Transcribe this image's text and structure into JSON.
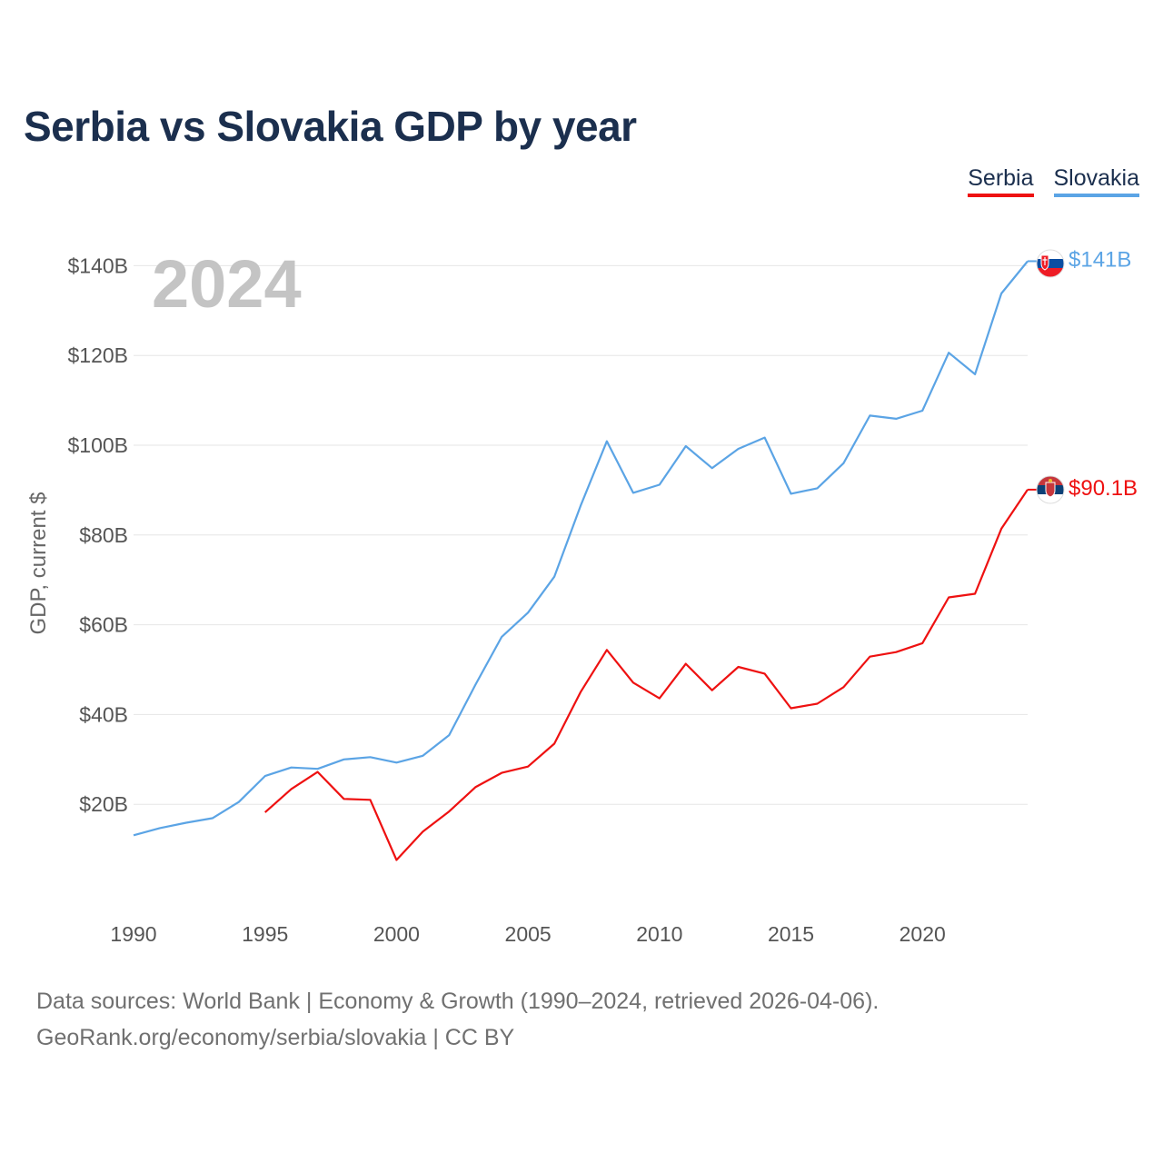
{
  "title": "Serbia vs Slovakia GDP by year",
  "legend": {
    "serbia": "Serbia",
    "slovakia": "Slovakia"
  },
  "source": {
    "line1": "Data sources: World Bank | Economy & Growth (1990–2024, retrieved 2026-04-06).",
    "line2": "GeoRank.org/economy/serbia/slovakia | CC BY"
  },
  "chart_data": {
    "type": "line",
    "title": "Serbia vs Slovakia GDP by year",
    "year_label": "2024",
    "xlabel": "",
    "ylabel": "GDP, current $",
    "xlim": [
      1990,
      2024
    ],
    "ylim": [
      0,
      150
    ],
    "grid": true,
    "x_ticks": [
      {
        "value": 1990,
        "label": "1990"
      },
      {
        "value": 1995,
        "label": "1995"
      },
      {
        "value": 2000,
        "label": "2000"
      },
      {
        "value": 2005,
        "label": "2005"
      },
      {
        "value": 2010,
        "label": "2010"
      },
      {
        "value": 2015,
        "label": "2015"
      },
      {
        "value": 2020,
        "label": "2020"
      }
    ],
    "y_ticks": [
      {
        "value": 20,
        "label": "$20B"
      },
      {
        "value": 40,
        "label": "$40B"
      },
      {
        "value": 60,
        "label": "$60B"
      },
      {
        "value": 80,
        "label": "$80B"
      },
      {
        "value": 100,
        "label": "$100B"
      },
      {
        "value": 120,
        "label": "$120B"
      },
      {
        "value": 140,
        "label": "$140B"
      }
    ],
    "series": [
      {
        "name": "Slovakia",
        "color": "#5ba4e5",
        "end_label": "$141B",
        "flag_icon": "slovakia-flag-icon",
        "x": [
          1990,
          1991,
          1992,
          1993,
          1994,
          1995,
          1996,
          1997,
          1998,
          1999,
          2000,
          2001,
          2002,
          2003,
          2004,
          2005,
          2006,
          2007,
          2008,
          2009,
          2010,
          2011,
          2012,
          2013,
          2014,
          2015,
          2016,
          2017,
          2018,
          2019,
          2020,
          2021,
          2022,
          2023,
          2024
        ],
        "values": [
          13.1,
          14.7,
          15.9,
          16.9,
          20.5,
          26.3,
          28.2,
          27.9,
          30.0,
          30.5,
          29.3,
          30.8,
          35.4,
          46.6,
          57.3,
          62.7,
          70.7,
          86.5,
          100.9,
          89.4,
          91.2,
          99.8,
          94.9,
          99.2,
          101.7,
          89.2,
          90.4,
          96.0,
          106.6,
          105.9,
          107.7,
          120.6,
          115.8,
          133.8,
          141.0
        ]
      },
      {
        "name": "Serbia",
        "color": "#ee1111",
        "end_label": "$90.1B",
        "flag_icon": "serbia-flag-icon",
        "x": [
          1995,
          1996,
          1997,
          1998,
          1999,
          2000,
          2001,
          2002,
          2003,
          2004,
          2005,
          2006,
          2007,
          2008,
          2009,
          2010,
          2011,
          2012,
          2013,
          2014,
          2015,
          2016,
          2017,
          2018,
          2019,
          2020,
          2021,
          2022,
          2023,
          2024
        ],
        "values": [
          18.2,
          23.4,
          27.2,
          21.2,
          21.0,
          7.6,
          13.9,
          18.4,
          23.8,
          27.0,
          28.4,
          33.5,
          45.0,
          54.4,
          47.1,
          43.6,
          51.3,
          45.4,
          50.6,
          49.1,
          41.4,
          42.4,
          46.1,
          52.9,
          53.9,
          55.9,
          66.1,
          66.9,
          81.4,
          90.1
        ]
      }
    ]
  }
}
